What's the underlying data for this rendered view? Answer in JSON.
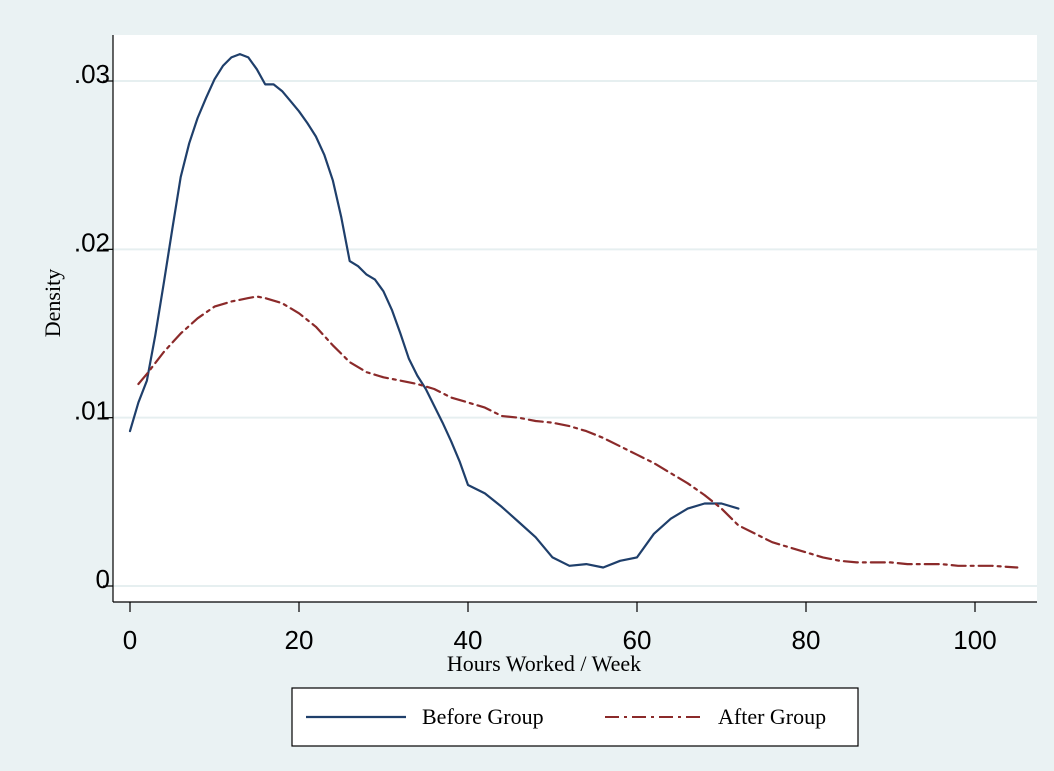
{
  "colors": {
    "background": "#eaf2f3",
    "plot_area": "#ffffff",
    "gridline": "#e6eff0",
    "axis": "#000000",
    "series_before": "#1f3f6b",
    "series_after": "#8b2a2a"
  },
  "chart_data": {
    "type": "line",
    "title": "",
    "xlabel": "Hours Worked / Week",
    "ylabel": "Density",
    "xlim": [
      0,
      106
    ],
    "ylim": [
      0,
      0.0335
    ],
    "grid": "horizontal",
    "legend_position": "bottom",
    "x_ticks": [
      {
        "value": 0,
        "label": "0"
      },
      {
        "value": 20,
        "label": "20"
      },
      {
        "value": 40,
        "label": "40"
      },
      {
        "value": 60,
        "label": "60"
      },
      {
        "value": 80,
        "label": "80"
      },
      {
        "value": 100,
        "label": "100"
      }
    ],
    "y_ticks": [
      {
        "value": 0,
        "label": "0"
      },
      {
        "value": 0.01,
        "label": ".01"
      },
      {
        "value": 0.02,
        "label": ".02"
      },
      {
        "value": 0.03,
        "label": ".03"
      }
    ],
    "series": [
      {
        "name": "Before Group",
        "style": "solid",
        "x": [
          0,
          1,
          2,
          3,
          4,
          5,
          6,
          7,
          8,
          9,
          10,
          11,
          12,
          13,
          14,
          15,
          16,
          17,
          18,
          19,
          20,
          21,
          22,
          23,
          24,
          25,
          26,
          27,
          28,
          29,
          30,
          31,
          32,
          33,
          34,
          35,
          36,
          37,
          38,
          39,
          40,
          42,
          44,
          46,
          48,
          50,
          52,
          54,
          56,
          58,
          60,
          62,
          64,
          66,
          68,
          70,
          72
        ],
        "y": [
          0.0092,
          0.0109,
          0.0122,
          0.0149,
          0.018,
          0.0212,
          0.0243,
          0.0263,
          0.0278,
          0.029,
          0.0301,
          0.0309,
          0.0314,
          0.0316,
          0.0314,
          0.0307,
          0.0298,
          0.0298,
          0.0294,
          0.0288,
          0.0282,
          0.0275,
          0.0267,
          0.0256,
          0.0241,
          0.0219,
          0.0193,
          0.019,
          0.0185,
          0.0182,
          0.0175,
          0.0164,
          0.015,
          0.0135,
          0.0125,
          0.0117,
          0.0107,
          0.0097,
          0.0086,
          0.0074,
          0.006,
          0.0055,
          0.0047,
          0.0038,
          0.0029,
          0.0017,
          0.0012,
          0.0013,
          0.0011,
          0.0015,
          0.0017,
          0.0031,
          0.004,
          0.0046,
          0.0049,
          0.0049,
          0.0046
        ]
      },
      {
        "name": "After Group",
        "style": "dash-dot",
        "x": [
          1,
          2,
          4,
          6,
          8,
          10,
          12,
          14,
          15,
          16,
          18,
          20,
          22,
          24,
          26,
          28,
          30,
          32,
          34,
          36,
          38,
          40,
          42,
          44,
          46,
          48,
          50,
          52,
          54,
          56,
          58,
          60,
          62,
          64,
          66,
          68,
          70,
          72,
          74,
          76,
          78,
          80,
          82,
          84,
          86,
          88,
          90,
          92,
          94,
          96,
          98,
          100,
          102,
          105
        ],
        "y": [
          0.012,
          0.0126,
          0.0139,
          0.015,
          0.0159,
          0.0166,
          0.0169,
          0.0171,
          0.0172,
          0.0171,
          0.0168,
          0.0162,
          0.0154,
          0.0143,
          0.0133,
          0.0127,
          0.0124,
          0.0122,
          0.012,
          0.0117,
          0.0112,
          0.0109,
          0.0106,
          0.0101,
          0.01,
          0.0098,
          0.0097,
          0.0095,
          0.0092,
          0.0088,
          0.0083,
          0.0078,
          0.0073,
          0.0067,
          0.0061,
          0.0054,
          0.0046,
          0.0036,
          0.0031,
          0.0026,
          0.0023,
          0.002,
          0.0017,
          0.0015,
          0.0014,
          0.0014,
          0.0014,
          0.0013,
          0.0013,
          0.0013,
          0.0012,
          0.0012,
          0.0012,
          0.0011
        ]
      }
    ]
  }
}
